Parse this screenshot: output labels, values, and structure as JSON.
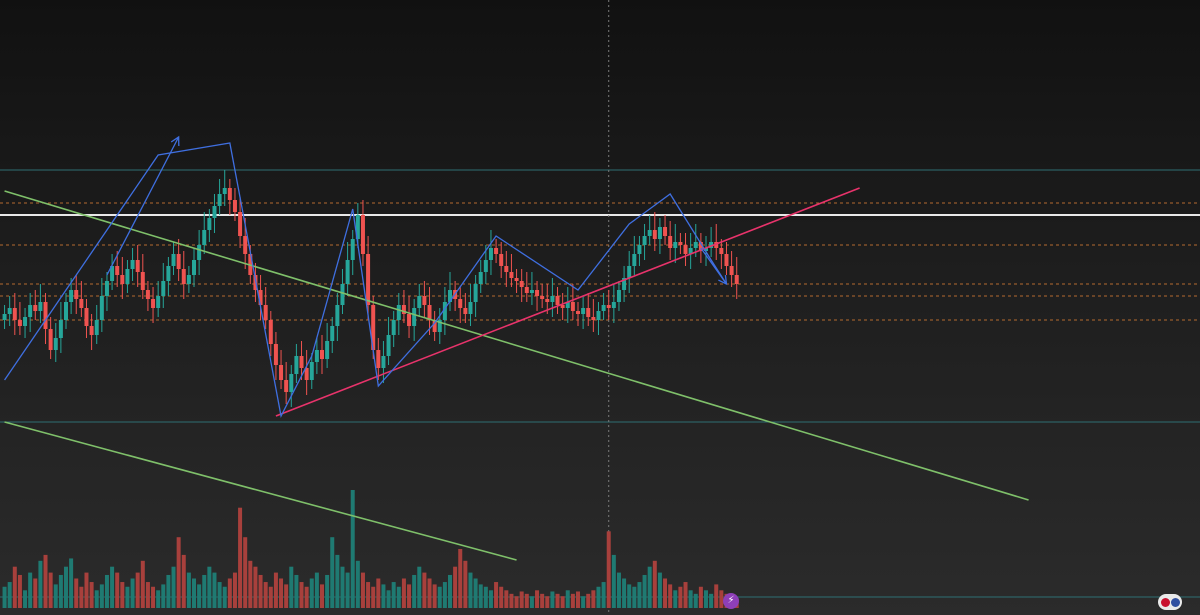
{
  "chart_data": {
    "type": "candlestick",
    "title": "",
    "xlabel": "",
    "ylabel": "",
    "ylim": [
      0,
      100
    ],
    "volume_ylim": [
      0,
      100
    ],
    "grid": false,
    "legend": "none",
    "colors": {
      "up": "#26a69a",
      "down": "#ef5350",
      "volume_up": "#1f7a72",
      "volume_down": "#a8403c",
      "channel_lines": "#2e6f73",
      "resistance_white": "#e8e8e8",
      "dotted_levels": "#b46a2f",
      "green_trendline": "#7fc06a",
      "pink_trendline": "#e8336b",
      "zigzag": "#3f6fe0",
      "crosshair": "#7a7a7a"
    },
    "closes": [
      42,
      44,
      40,
      38,
      41,
      45,
      43,
      46,
      37,
      30,
      34,
      40,
      46,
      50,
      47,
      44,
      38,
      35,
      40,
      48,
      53,
      58,
      55,
      52,
      57,
      60,
      56,
      50,
      47,
      44,
      48,
      53,
      58,
      62,
      57,
      52,
      55,
      60,
      65,
      70,
      74,
      78,
      82,
      84,
      80,
      76,
      68,
      62,
      55,
      50,
      45,
      40,
      32,
      25,
      20,
      16,
      22,
      28,
      24,
      20,
      26,
      30,
      27,
      33,
      38,
      45,
      52,
      60,
      67,
      75,
      62,
      45,
      30,
      24,
      28,
      35,
      40,
      45,
      42,
      38,
      44,
      48,
      45,
      40,
      36,
      40,
      46,
      50,
      47,
      44,
      42,
      46,
      52,
      56,
      60,
      64,
      62,
      58,
      56,
      54,
      53,
      51,
      49,
      50,
      48,
      47,
      46,
      48,
      45,
      44,
      46,
      43,
      42,
      44,
      41,
      40,
      43,
      45,
      44,
      46,
      50,
      54,
      58,
      62,
      65,
      68,
      70,
      67,
      71,
      68,
      64,
      66,
      65,
      62,
      64,
      66,
      63,
      64,
      66,
      64,
      62,
      58,
      55,
      52
    ],
    "volumes": [
      18,
      22,
      35,
      28,
      15,
      30,
      25,
      40,
      45,
      30,
      20,
      28,
      35,
      42,
      25,
      18,
      30,
      22,
      15,
      20,
      28,
      35,
      30,
      22,
      18,
      25,
      30,
      40,
      22,
      18,
      15,
      20,
      28,
      35,
      60,
      45,
      30,
      25,
      20,
      28,
      35,
      30,
      22,
      18,
      25,
      30,
      85,
      60,
      40,
      35,
      28,
      22,
      18,
      30,
      25,
      20,
      35,
      28,
      22,
      18,
      25,
      30,
      20,
      28,
      60,
      45,
      35,
      30,
      100,
      40,
      30,
      22,
      18,
      25,
      20,
      15,
      22,
      18,
      25,
      20,
      28,
      35,
      30,
      25,
      20,
      18,
      22,
      28,
      35,
      50,
      40,
      30,
      25,
      20,
      18,
      15,
      22,
      18,
      15,
      12,
      10,
      14,
      12,
      10,
      15,
      12,
      10,
      14,
      12,
      10,
      15,
      12,
      14,
      10,
      12,
      15,
      18,
      22,
      65,
      45,
      30,
      25,
      20,
      18,
      22,
      28,
      35,
      40,
      30,
      25,
      20,
      15,
      18,
      22,
      15,
      12,
      18,
      15,
      12,
      20,
      15,
      12,
      10,
      8
    ],
    "horizontal_levels": {
      "solid": [
        75,
        90,
        6
      ],
      "dashed": [
        79,
        65,
        52,
        48,
        40
      ]
    },
    "trendlines": {
      "green_upper": [
        [
          0,
          83
        ],
        [
          200,
          -20
        ]
      ],
      "green_lower": [
        [
          0,
          6
        ],
        [
          100,
          -40
        ]
      ],
      "pink": [
        [
          53,
          8
        ],
        [
          167,
          84
        ]
      ]
    },
    "zigzag": [
      [
        0,
        20
      ],
      [
        30,
        95
      ],
      [
        44,
        99
      ],
      [
        54,
        8
      ],
      [
        60,
        28
      ],
      [
        68,
        77
      ],
      [
        73,
        18
      ],
      [
        84,
        39
      ],
      [
        96,
        68
      ],
      [
        112,
        50
      ],
      [
        122,
        72
      ],
      [
        130,
        82
      ],
      [
        138,
        60
      ],
      [
        141,
        52
      ]
    ],
    "arrows": [
      {
        "from": [
          20,
          55
        ],
        "to": [
          34,
          101
        ]
      },
      {
        "from": [
          136,
          64
        ],
        "to": [
          141,
          52
        ]
      }
    ],
    "crosshair_x": 118
  },
  "icons": {
    "flag": "us-flag-icon",
    "event": "lightning-event-icon"
  }
}
